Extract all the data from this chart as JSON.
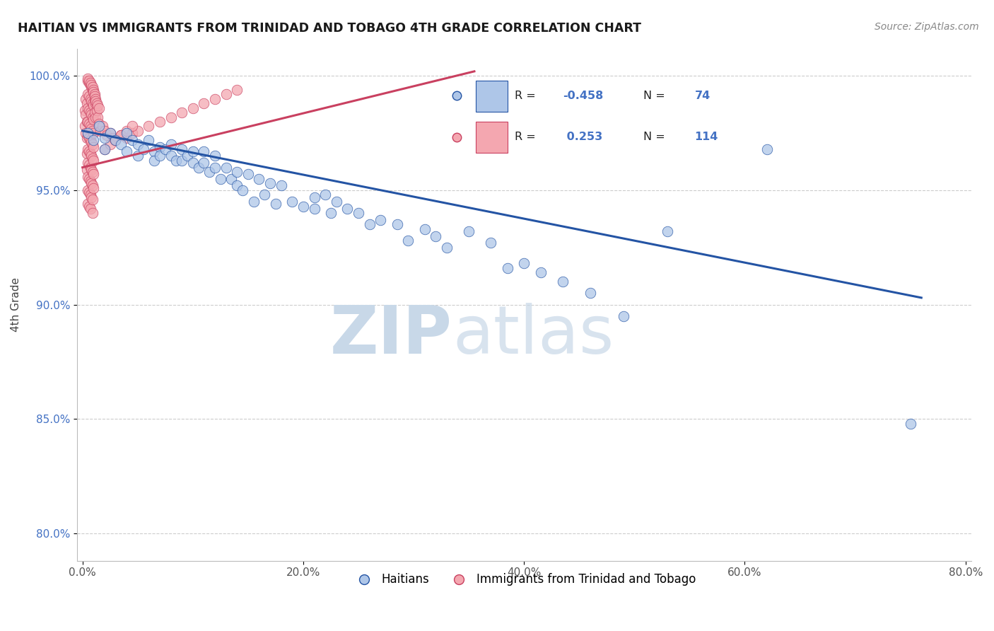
{
  "title": "HAITIAN VS IMMIGRANTS FROM TRINIDAD AND TOBAGO 4TH GRADE CORRELATION CHART",
  "source_text": "Source: ZipAtlas.com",
  "ylabel": "4th Grade",
  "xlabel": "",
  "xlim": [
    -0.005,
    0.805
  ],
  "ylim": [
    0.788,
    1.012
  ],
  "yticks": [
    0.8,
    0.85,
    0.9,
    0.95,
    1.0
  ],
  "ytick_labels": [
    "80.0%",
    "85.0%",
    "90.0%",
    "95.0%",
    "100.0%"
  ],
  "xticks": [
    0.0,
    0.2,
    0.4,
    0.6,
    0.8
  ],
  "xtick_labels": [
    "0.0%",
    "20.0%",
    "40.0%",
    "60.0%",
    "80.0%"
  ],
  "blue_R": -0.458,
  "blue_N": 74,
  "pink_R": 0.253,
  "pink_N": 114,
  "blue_color": "#aec6e8",
  "pink_color": "#f4a7b0",
  "blue_line_color": "#2454a4",
  "pink_line_color": "#c94060",
  "watermark_zip": "ZIP",
  "watermark_atlas": "atlas",
  "watermark_color": "#c8d8e8",
  "legend_label_blue": "Haitians",
  "legend_label_pink": "Immigrants from Trinidad and Tobago",
  "blue_scatter_x": [
    0.005,
    0.01,
    0.015,
    0.02,
    0.02,
    0.025,
    0.03,
    0.035,
    0.04,
    0.04,
    0.045,
    0.05,
    0.05,
    0.055,
    0.06,
    0.065,
    0.065,
    0.07,
    0.07,
    0.075,
    0.08,
    0.08,
    0.085,
    0.09,
    0.09,
    0.095,
    0.1,
    0.1,
    0.105,
    0.11,
    0.11,
    0.115,
    0.12,
    0.12,
    0.125,
    0.13,
    0.135,
    0.14,
    0.14,
    0.145,
    0.15,
    0.155,
    0.16,
    0.165,
    0.17,
    0.175,
    0.18,
    0.19,
    0.2,
    0.21,
    0.21,
    0.22,
    0.225,
    0.23,
    0.24,
    0.25,
    0.26,
    0.27,
    0.285,
    0.295,
    0.31,
    0.32,
    0.33,
    0.35,
    0.37,
    0.385,
    0.4,
    0.415,
    0.435,
    0.46,
    0.49,
    0.53,
    0.62,
    0.75
  ],
  "blue_scatter_y": [
    0.975,
    0.972,
    0.978,
    0.973,
    0.968,
    0.975,
    0.972,
    0.97,
    0.975,
    0.967,
    0.972,
    0.97,
    0.965,
    0.968,
    0.972,
    0.967,
    0.963,
    0.969,
    0.965,
    0.968,
    0.965,
    0.97,
    0.963,
    0.963,
    0.968,
    0.965,
    0.962,
    0.967,
    0.96,
    0.962,
    0.967,
    0.958,
    0.96,
    0.965,
    0.955,
    0.96,
    0.955,
    0.952,
    0.958,
    0.95,
    0.957,
    0.945,
    0.955,
    0.948,
    0.953,
    0.944,
    0.952,
    0.945,
    0.943,
    0.947,
    0.942,
    0.948,
    0.94,
    0.945,
    0.942,
    0.94,
    0.935,
    0.937,
    0.935,
    0.928,
    0.933,
    0.93,
    0.925,
    0.932,
    0.927,
    0.916,
    0.918,
    0.914,
    0.91,
    0.905,
    0.895,
    0.932,
    0.968,
    0.848
  ],
  "pink_scatter_x": [
    0.002,
    0.002,
    0.003,
    0.003,
    0.003,
    0.004,
    0.004,
    0.004,
    0.004,
    0.004,
    0.005,
    0.005,
    0.005,
    0.005,
    0.005,
    0.005,
    0.005,
    0.005,
    0.005,
    0.005,
    0.006,
    0.006,
    0.006,
    0.006,
    0.006,
    0.006,
    0.006,
    0.006,
    0.006,
    0.006,
    0.007,
    0.007,
    0.007,
    0.007,
    0.007,
    0.007,
    0.007,
    0.007,
    0.007,
    0.007,
    0.008,
    0.008,
    0.008,
    0.008,
    0.008,
    0.008,
    0.008,
    0.008,
    0.008,
    0.009,
    0.009,
    0.009,
    0.009,
    0.009,
    0.009,
    0.009,
    0.009,
    0.009,
    0.009,
    0.01,
    0.01,
    0.01,
    0.01,
    0.01,
    0.01,
    0.01,
    0.01,
    0.011,
    0.011,
    0.012,
    0.012,
    0.013,
    0.014,
    0.015,
    0.016,
    0.018,
    0.02,
    0.022,
    0.025,
    0.028,
    0.03,
    0.035,
    0.04,
    0.045,
    0.05,
    0.06,
    0.07,
    0.08,
    0.09,
    0.1,
    0.11,
    0.12,
    0.13,
    0.14,
    0.02,
    0.025,
    0.03,
    0.035,
    0.04,
    0.045,
    0.005,
    0.006,
    0.007,
    0.008,
    0.009,
    0.01,
    0.01,
    0.011,
    0.011,
    0.012,
    0.012,
    0.013,
    0.014,
    0.015
  ],
  "pink_scatter_y": [
    0.985,
    0.978,
    0.99,
    0.983,
    0.975,
    0.988,
    0.98,
    0.973,
    0.966,
    0.959,
    0.998,
    0.992,
    0.986,
    0.98,
    0.974,
    0.968,
    0.962,
    0.956,
    0.95,
    0.944,
    0.997,
    0.991,
    0.985,
    0.979,
    0.973,
    0.967,
    0.961,
    0.955,
    0.949,
    0.943,
    0.996,
    0.99,
    0.984,
    0.978,
    0.972,
    0.966,
    0.96,
    0.954,
    0.948,
    0.942,
    0.995,
    0.989,
    0.983,
    0.977,
    0.971,
    0.965,
    0.959,
    0.953,
    0.947,
    0.994,
    0.988,
    0.982,
    0.976,
    0.97,
    0.964,
    0.958,
    0.952,
    0.946,
    0.94,
    0.993,
    0.987,
    0.981,
    0.975,
    0.969,
    0.963,
    0.957,
    0.951,
    0.99,
    0.984,
    0.988,
    0.982,
    0.985,
    0.982,
    0.979,
    0.976,
    0.978,
    0.976,
    0.974,
    0.975,
    0.973,
    0.972,
    0.974,
    0.973,
    0.975,
    0.976,
    0.978,
    0.98,
    0.982,
    0.984,
    0.986,
    0.988,
    0.99,
    0.992,
    0.994,
    0.968,
    0.97,
    0.972,
    0.974,
    0.976,
    0.978,
    0.999,
    0.998,
    0.997,
    0.996,
    0.995,
    0.994,
    0.993,
    0.992,
    0.991,
    0.99,
    0.989,
    0.988,
    0.987,
    0.986
  ]
}
